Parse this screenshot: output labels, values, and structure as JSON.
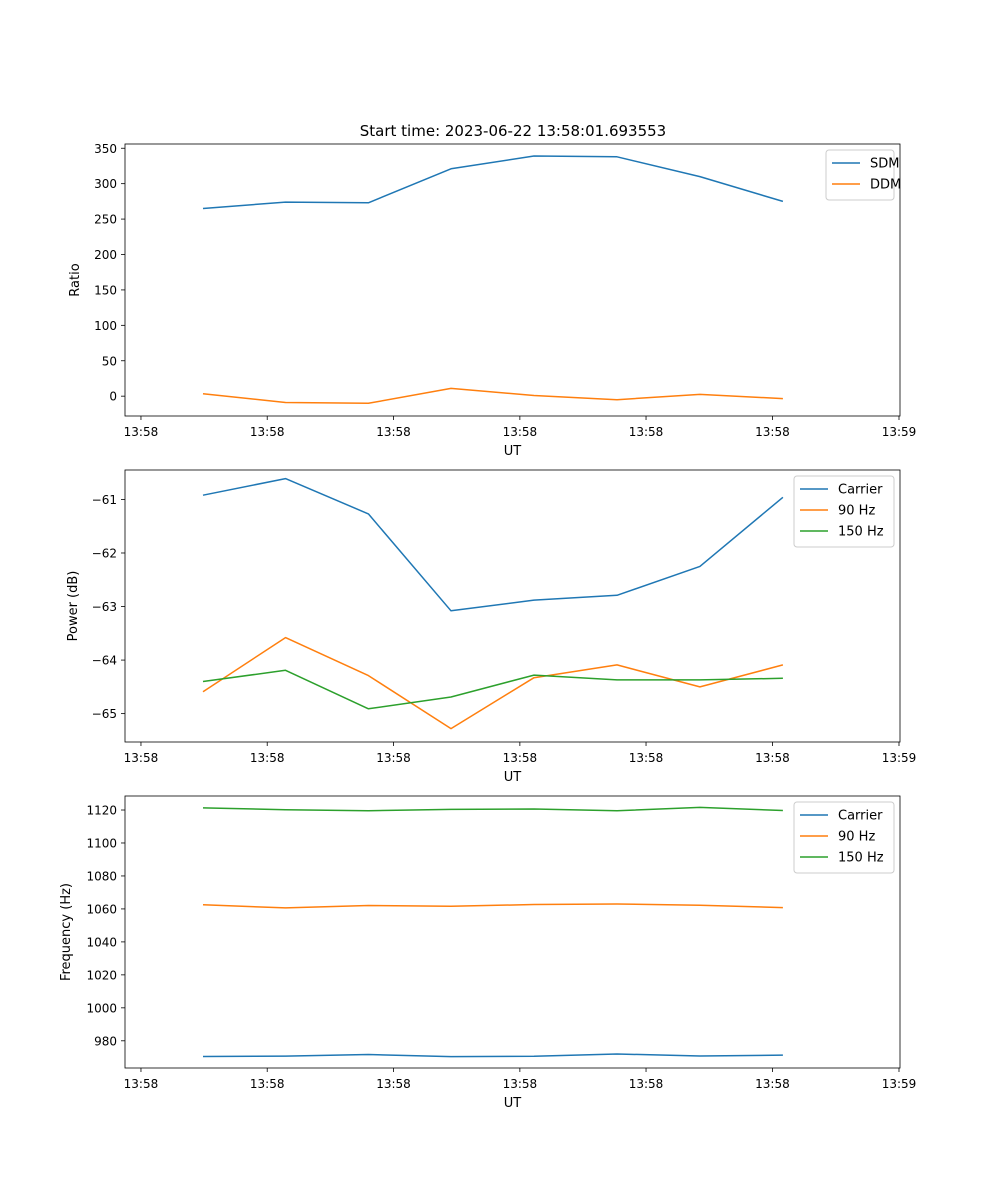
{
  "figure": {
    "title": "Start time: 2023-06-22 13:58:01.693553"
  },
  "chart_data": [
    {
      "type": "line",
      "title": "Start time: 2023-06-22 13:58:01.693553",
      "xlabel": "UT",
      "ylabel": "Ratio",
      "x_tick_labels": [
        "13:58",
        "13:58",
        "13:58",
        "13:58",
        "13:58",
        "13:58",
        "13:59"
      ],
      "ylim": [
        -28,
        356
      ],
      "y_ticks": [
        0,
        50,
        100,
        150,
        200,
        250,
        300,
        350
      ],
      "grid": false,
      "legend": "top-right",
      "series": [
        {
          "name": "SDM",
          "color": "#1f77b4",
          "values": [
            265,
            274,
            273,
            321,
            339,
            338,
            310,
            275
          ]
        },
        {
          "name": "DDM",
          "color": "#ff7f0e",
          "values": [
            3.5,
            -9,
            -10,
            11,
            1,
            -5,
            2.5,
            -3.5
          ]
        }
      ]
    },
    {
      "type": "line",
      "title": "",
      "xlabel": "UT",
      "ylabel": "Power (dB)",
      "x_tick_labels": [
        "13:58",
        "13:58",
        "13:58",
        "13:58",
        "13:58",
        "13:58",
        "13:59"
      ],
      "ylim": [
        -65.53,
        -60.45
      ],
      "y_ticks": [
        -65,
        -64,
        -63,
        -62,
        -61
      ],
      "grid": false,
      "legend": "top-right",
      "series": [
        {
          "name": "Carrier",
          "color": "#1f77b4",
          "values": [
            -60.92,
            -60.61,
            -61.27,
            -63.08,
            -62.88,
            -62.79,
            -62.25,
            -60.96
          ]
        },
        {
          "name": "90 Hz",
          "color": "#ff7f0e",
          "values": [
            -64.59,
            -63.58,
            -64.29,
            -65.28,
            -64.33,
            -64.09,
            -64.5,
            -64.09
          ]
        },
        {
          "name": "150 Hz",
          "color": "#2ca02c",
          "values": [
            -64.4,
            -64.19,
            -64.91,
            -64.69,
            -64.28,
            -64.37,
            -64.37,
            -64.34
          ]
        }
      ]
    },
    {
      "type": "line",
      "title": "",
      "xlabel": "UT",
      "ylabel": "Frequency (Hz)",
      "x_tick_labels": [
        "13:58",
        "13:58",
        "13:58",
        "13:58",
        "13:58",
        "13:58",
        "13:59"
      ],
      "ylim": [
        963.5,
        1128.5
      ],
      "y_ticks": [
        980,
        1000,
        1020,
        1040,
        1060,
        1080,
        1100,
        1120
      ],
      "grid": false,
      "legend": "top-right",
      "series": [
        {
          "name": "Carrier",
          "color": "#1f77b4",
          "values": [
            970.5,
            970.7,
            971.7,
            970.4,
            970.6,
            972.0,
            970.8,
            971.3
          ]
        },
        {
          "name": "90 Hz",
          "color": "#ff7f0e",
          "values": [
            1062.5,
            1060.6,
            1062.1,
            1061.6,
            1062.7,
            1063.0,
            1062.2,
            1060.8
          ]
        },
        {
          "name": "150 Hz",
          "color": "#2ca02c",
          "values": [
            1121.3,
            1120.2,
            1119.6,
            1120.4,
            1120.6,
            1119.6,
            1121.6,
            1119.7
          ]
        }
      ]
    }
  ]
}
